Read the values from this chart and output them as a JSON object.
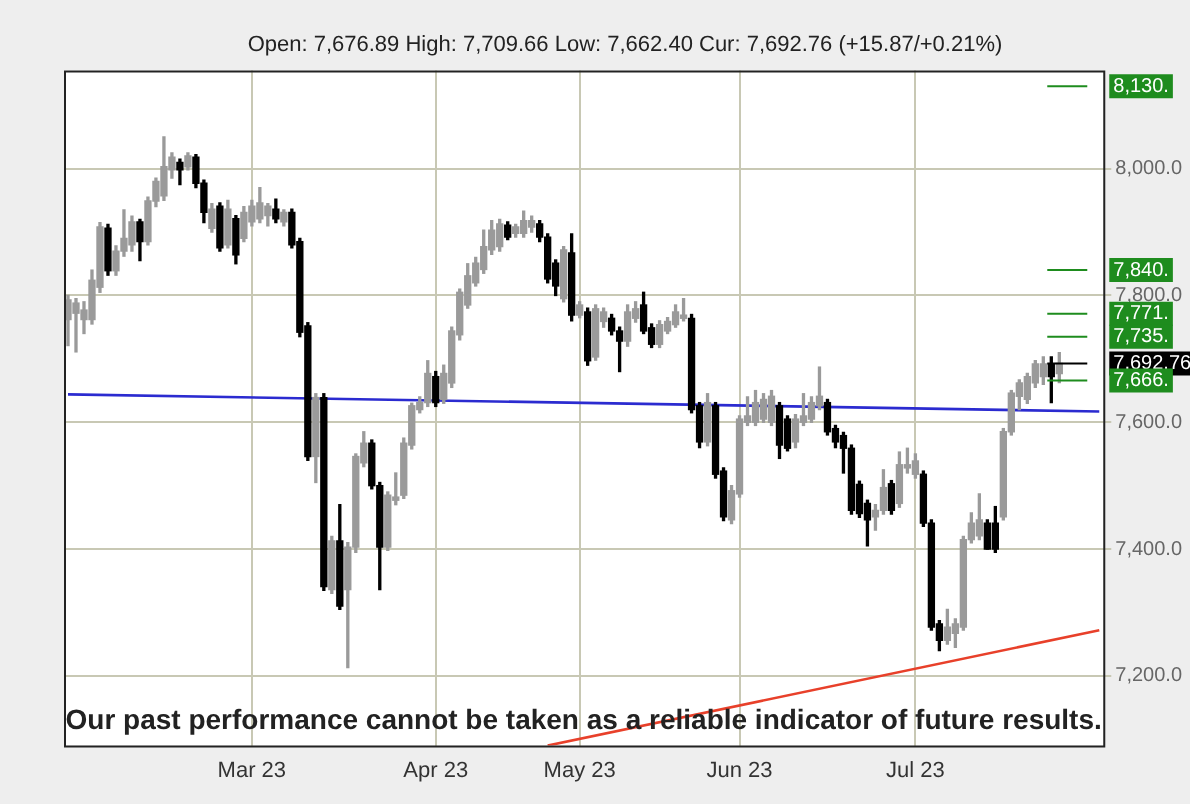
{
  "chart_data": {
    "type": "candlestick",
    "subtitle": "Open: 7,676.89 High: 7,709.66 Low: 7,662.40 Cur: 7,692.76 (+15.87/+0.21%)",
    "categories": [
      null,
      null,
      null,
      null,
      null,
      null,
      null,
      null,
      null,
      null,
      null,
      null,
      null,
      null,
      null,
      null,
      null,
      null,
      null,
      null,
      null,
      null,
      null,
      "Mar 23",
      null,
      null,
      null,
      null,
      null,
      null,
      null,
      null,
      null,
      null,
      null,
      null,
      null,
      null,
      null,
      null,
      null,
      null,
      null,
      null,
      null,
      null,
      "Apr 23",
      null,
      null,
      null,
      null,
      null,
      null,
      null,
      null,
      null,
      null,
      null,
      null,
      null,
      null,
      null,
      null,
      null,
      "May 23",
      null,
      null,
      null,
      null,
      null,
      null,
      null,
      null,
      null,
      null,
      null,
      null,
      null,
      null,
      null,
      null,
      null,
      null,
      null,
      "Jun 23",
      null,
      null,
      null,
      null,
      null,
      null,
      null,
      null,
      null,
      null,
      null,
      null,
      null,
      null,
      null,
      null,
      null,
      null,
      null,
      null,
      null,
      "Jul 23",
      null,
      null,
      null,
      null,
      null,
      null,
      null,
      null,
      null,
      null,
      null,
      null,
      null,
      null,
      null,
      null,
      null,
      null,
      null,
      null,
      null,
      null,
      null
    ],
    "ohlc": [
      [
        7762,
        7800,
        7721,
        7793
      ],
      [
        7772,
        7795,
        7711,
        7788
      ],
      [
        7762,
        7790,
        7740,
        7777
      ],
      [
        7762,
        7840,
        7755,
        7824
      ],
      [
        7813,
        7915,
        7805,
        7908
      ],
      [
        7906,
        7912,
        7832,
        7839
      ],
      [
        7839,
        7878,
        7832,
        7870
      ],
      [
        7870,
        7935,
        7862,
        7890
      ],
      [
        7880,
        7925,
        7870,
        7916
      ],
      [
        7916,
        7920,
        7855,
        7885
      ],
      [
        7885,
        7955,
        7880,
        7949
      ],
      [
        7949,
        7985,
        7940,
        7980
      ],
      [
        7957,
        8050,
        7950,
        8003
      ],
      [
        7998,
        8025,
        7985,
        8018
      ],
      [
        8010,
        8015,
        7975,
        7998
      ],
      [
        8003,
        8025,
        7998,
        8020
      ],
      [
        8018,
        8022,
        7970,
        7977
      ],
      [
        7977,
        7982,
        7915,
        7931
      ],
      [
        7906,
        7945,
        7900,
        7936
      ],
      [
        7941,
        7946,
        7870,
        7875
      ],
      [
        7880,
        7950,
        7875,
        7936
      ],
      [
        7921,
        7926,
        7850,
        7864
      ],
      [
        7890,
        7940,
        7885,
        7931
      ],
      [
        7916,
        7950,
        7910,
        7941
      ],
      [
        7921,
        7970,
        7915,
        7946
      ],
      [
        7926,
        7945,
        7910,
        7941
      ],
      [
        7936,
        7952,
        7915,
        7921
      ],
      [
        7916,
        7935,
        7910,
        7931
      ],
      [
        7931,
        7936,
        7875,
        7880
      ],
      [
        7885,
        7890,
        7735,
        7742
      ],
      [
        7752,
        7757,
        7540,
        7546
      ],
      [
        7546,
        7645,
        7505,
        7639
      ],
      [
        7639,
        7645,
        7335,
        7341
      ],
      [
        7336,
        7420,
        7330,
        7413
      ],
      [
        7413,
        7470,
        7305,
        7310
      ],
      [
        7336,
        7410,
        7213,
        7403
      ],
      [
        7403,
        7550,
        7395,
        7546
      ],
      [
        7536,
        7585,
        7530,
        7567
      ],
      [
        7567,
        7572,
        7495,
        7500
      ],
      [
        7500,
        7505,
        7336,
        7403
      ],
      [
        7403,
        7490,
        7398,
        7485
      ],
      [
        7477,
        7520,
        7470,
        7482
      ],
      [
        7485,
        7575,
        7480,
        7567
      ],
      [
        7564,
        7630,
        7558,
        7626
      ],
      [
        7620,
        7640,
        7615,
        7631
      ],
      [
        7631,
        7697,
        7625,
        7677
      ],
      [
        7672,
        7680,
        7625,
        7631
      ],
      [
        7636,
        7690,
        7630,
        7677
      ],
      [
        7662,
        7750,
        7655,
        7744
      ],
      [
        7738,
        7810,
        7730,
        7805
      ],
      [
        7785,
        7850,
        7780,
        7831
      ],
      [
        7820,
        7860,
        7815,
        7851
      ],
      [
        7841,
        7903,
        7835,
        7877
      ],
      [
        7872,
        7918,
        7865,
        7903
      ],
      [
        7877,
        7920,
        7870,
        7913
      ],
      [
        7911,
        7916,
        7888,
        7892
      ],
      [
        7898,
        7912,
        7892,
        7908
      ],
      [
        7898,
        7933,
        7892,
        7918
      ],
      [
        7908,
        7925,
        7900,
        7918
      ],
      [
        7913,
        7918,
        7885,
        7892
      ],
      [
        7892,
        7897,
        7820,
        7826
      ],
      [
        7851,
        7856,
        7800,
        7815
      ],
      [
        7795,
        7877,
        7790,
        7872
      ],
      [
        7867,
        7897,
        7760,
        7769
      ],
      [
        7769,
        7790,
        7765,
        7785
      ],
      [
        7774,
        7780,
        7690,
        7697
      ],
      [
        7703,
        7785,
        7698,
        7779
      ],
      [
        7759,
        7780,
        7750,
        7774
      ],
      [
        7764,
        7770,
        7738,
        7744
      ],
      [
        7744,
        7750,
        7680,
        7728
      ],
      [
        7728,
        7785,
        7720,
        7774
      ],
      [
        7764,
        7790,
        7758,
        7779
      ],
      [
        7785,
        7805,
        7740,
        7744
      ],
      [
        7749,
        7755,
        7718,
        7723
      ],
      [
        7723,
        7760,
        7718,
        7754
      ],
      [
        7744,
        7765,
        7740,
        7759
      ],
      [
        7754,
        7785,
        7750,
        7774
      ],
      [
        7764,
        7795,
        7760,
        7769
      ],
      [
        7764,
        7770,
        7615,
        7620
      ],
      [
        7626,
        7631,
        7560,
        7569
      ],
      [
        7569,
        7645,
        7563,
        7631
      ],
      [
        7626,
        7631,
        7512,
        7518
      ],
      [
        7523,
        7528,
        7445,
        7451
      ],
      [
        7446,
        7500,
        7440,
        7492
      ],
      [
        7487,
        7610,
        7482,
        7605
      ],
      [
        7600,
        7640,
        7595,
        7610
      ],
      [
        7600,
        7650,
        7595,
        7631
      ],
      [
        7605,
        7645,
        7600,
        7636
      ],
      [
        7600,
        7650,
        7595,
        7641
      ],
      [
        7626,
        7631,
        7543,
        7564
      ],
      [
        7605,
        7610,
        7555,
        7559
      ],
      [
        7569,
        7612,
        7560,
        7605
      ],
      [
        7600,
        7645,
        7595,
        7610
      ],
      [
        7605,
        7640,
        7600,
        7631
      ],
      [
        7626,
        7687,
        7620,
        7641
      ],
      [
        7631,
        7636,
        7580,
        7585
      ],
      [
        7590,
        7595,
        7560,
        7569
      ],
      [
        7579,
        7584,
        7520,
        7559
      ],
      [
        7559,
        7564,
        7455,
        7461
      ],
      [
        7502,
        7507,
        7450,
        7456
      ],
      [
        7472,
        7477,
        7405,
        7446
      ],
      [
        7451,
        7470,
        7430,
        7461
      ],
      [
        7461,
        7525,
        7455,
        7497
      ],
      [
        7503,
        7508,
        7455,
        7461
      ],
      [
        7472,
        7553,
        7466,
        7533
      ],
      [
        7528,
        7559,
        7520,
        7533
      ],
      [
        7518,
        7550,
        7512,
        7539
      ],
      [
        7518,
        7523,
        7436,
        7441
      ],
      [
        7441,
        7446,
        7272,
        7277
      ],
      [
        7282,
        7287,
        7240,
        7256
      ],
      [
        7256,
        7305,
        7250,
        7277
      ],
      [
        7267,
        7290,
        7245,
        7282
      ],
      [
        7277,
        7420,
        7272,
        7415
      ],
      [
        7415,
        7457,
        7410,
        7441
      ],
      [
        7421,
        7487,
        7415,
        7446
      ],
      [
        7441,
        7446,
        7400,
        7400
      ],
      [
        7441,
        7467,
        7395,
        7400
      ],
      [
        7451,
        7590,
        7446,
        7585
      ],
      [
        7585,
        7650,
        7580,
        7646
      ],
      [
        7641,
        7667,
        7620,
        7662
      ],
      [
        7636,
        7677,
        7630,
        7672
      ],
      [
        7662,
        7697,
        7655,
        7692
      ],
      [
        7672,
        7703,
        7660,
        7692
      ],
      [
        7692,
        7703,
        7631,
        7672
      ],
      [
        7676.89,
        7709.66,
        7662.4,
        7692.76
      ],
      null,
      null,
      null,
      null,
      null
    ],
    "series": [
      {
        "type": "line",
        "color": "#2b2bd0",
        "values": [
          7644,
          null,
          null,
          null,
          null,
          null,
          null,
          null,
          null,
          null,
          null,
          null,
          null,
          null,
          null,
          null,
          null,
          null,
          null,
          null,
          null,
          null,
          null,
          null,
          null,
          null,
          null,
          null,
          null,
          null,
          null,
          null,
          null,
          null,
          null,
          null,
          null,
          null,
          null,
          null,
          null,
          null,
          null,
          null,
          null,
          null,
          null,
          null,
          null,
          null,
          null,
          null,
          null,
          null,
          null,
          null,
          null,
          null,
          null,
          null,
          null,
          null,
          null,
          null,
          null,
          null,
          null,
          null,
          null,
          null,
          null,
          null,
          null,
          null,
          null,
          null,
          null,
          null,
          null,
          null,
          null,
          null,
          null,
          null,
          null,
          null,
          null,
          null,
          null,
          null,
          null,
          null,
          null,
          null,
          null,
          null,
          null,
          null,
          null,
          null,
          null,
          null,
          null,
          null,
          null,
          null,
          null,
          null,
          null,
          null,
          null,
          null,
          null,
          null,
          null,
          null,
          null,
          null,
          null,
          null,
          null,
          null,
          null,
          null,
          null,
          null,
          null,
          null,
          null,
          7617
        ]
      },
      {
        "type": "line",
        "color": "#e8402a",
        "values": [
          null,
          null,
          null,
          null,
          null,
          null,
          null,
          null,
          null,
          null,
          null,
          null,
          null,
          null,
          null,
          null,
          null,
          null,
          null,
          null,
          null,
          null,
          null,
          null,
          null,
          null,
          null,
          null,
          null,
          null,
          null,
          null,
          null,
          null,
          null,
          null,
          null,
          null,
          null,
          null,
          null,
          null,
          null,
          null,
          null,
          null,
          null,
          null,
          null,
          null,
          null,
          null,
          null,
          null,
          null,
          null,
          null,
          null,
          null,
          null,
          7090,
          null,
          null,
          null,
          null,
          null,
          null,
          null,
          null,
          null,
          null,
          null,
          null,
          null,
          null,
          null,
          null,
          null,
          null,
          null,
          null,
          null,
          null,
          null,
          null,
          null,
          null,
          null,
          null,
          null,
          null,
          null,
          null,
          null,
          null,
          null,
          null,
          null,
          null,
          null,
          null,
          null,
          null,
          null,
          null,
          null,
          null,
          null,
          null,
          null,
          null,
          null,
          null,
          null,
          null,
          null,
          null,
          null,
          null,
          null,
          null,
          null,
          null,
          null,
          null,
          null,
          null,
          null,
          null,
          7272
        ]
      }
    ],
    "ylim": [
      7090,
      8155
    ],
    "yticks": [
      {
        "value": 7200,
        "label": "7,200.0"
      },
      {
        "value": 7400,
        "label": "7,400.0"
      },
      {
        "value": 7600,
        "label": "7,600.0"
      },
      {
        "value": 7800,
        "label": "7,800.0"
      },
      {
        "value": 8000,
        "label": "8,000.0"
      }
    ],
    "ref_lines": [
      {
        "axis": "y",
        "value": 8130,
        "label": "8,130.",
        "color": "#1e8c1e"
      },
      {
        "axis": "y",
        "value": 7840,
        "label": "7,840.",
        "color": "#1e8c1e"
      },
      {
        "axis": "y",
        "value": 7771,
        "label": "7,771.",
        "color": "#1e8c1e"
      },
      {
        "axis": "y",
        "value": 7735,
        "label": "7,735.",
        "color": "#1e8c1e"
      },
      {
        "axis": "y",
        "value": 7692.76,
        "label": "7,692.76",
        "color": "#000000"
      },
      {
        "axis": "y",
        "value": 7666,
        "label": "7,666.",
        "color": "#1e8c1e"
      }
    ],
    "annotations": [
      "Our past performance cannot be taken as a reliable indicator of future results."
    ],
    "grid": true,
    "legend": false
  }
}
